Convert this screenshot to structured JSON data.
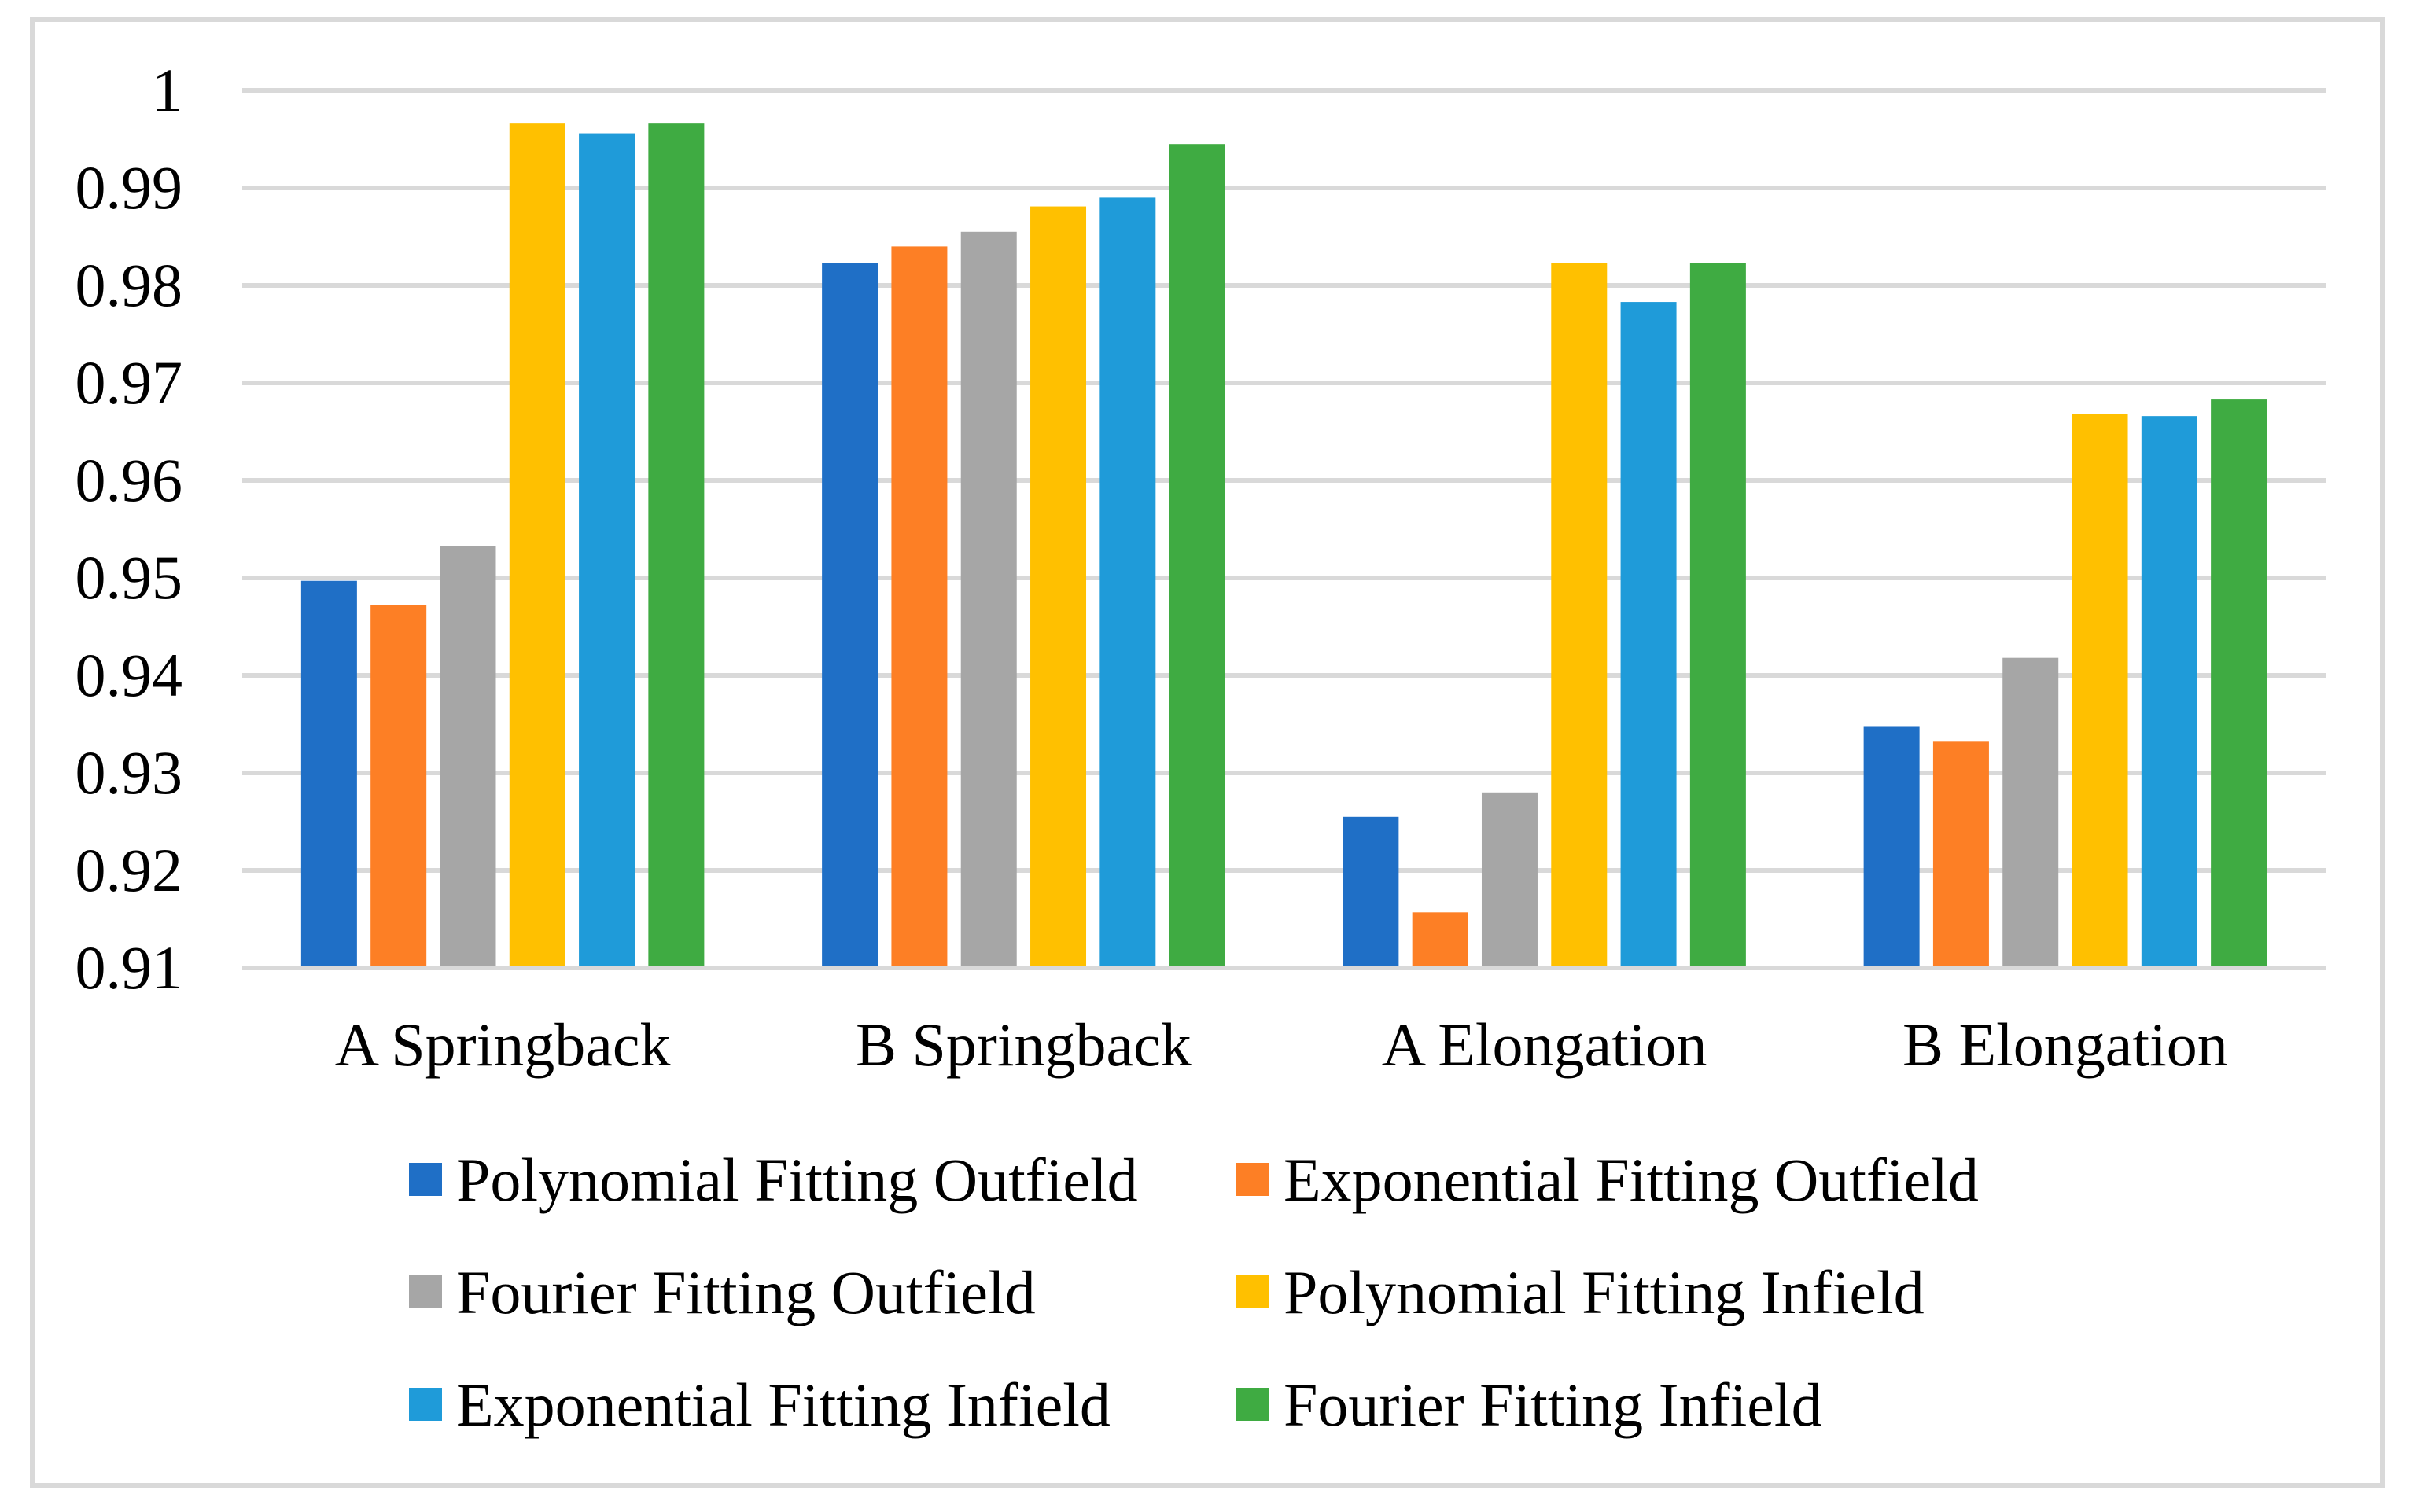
{
  "chart_data": {
    "type": "bar",
    "title": "",
    "xlabel": "",
    "ylabel": "",
    "ylim": [
      0.91,
      1.0
    ],
    "yticks": [
      0.91,
      0.92,
      0.93,
      0.94,
      0.95,
      0.96,
      0.97,
      0.98,
      0.99,
      1.0
    ],
    "ytick_labels": [
      "0.91",
      "0.92",
      "0.93",
      "0.94",
      "0.95",
      "0.96",
      "0.97",
      "0.98",
      "0.99",
      "1"
    ],
    "grid": true,
    "legend_position": "bottom",
    "categories": [
      "A Springback",
      "B Springback",
      "A Elongation",
      "B Elongation"
    ],
    "series": [
      {
        "name": "Polynomial Fitting Outfield",
        "color": "#1f6fc6",
        "values": [
          0.9497,
          0.9823,
          0.9255,
          0.9348
        ]
      },
      {
        "name": "Exponential Fitting Outfield",
        "color": "#fd7f25",
        "values": [
          0.9472,
          0.984,
          0.9157,
          0.9332
        ]
      },
      {
        "name": "Fourier Fitting Outfield",
        "color": "#a6a6a6",
        "values": [
          0.9533,
          0.9855,
          0.928,
          0.9418
        ]
      },
      {
        "name": "Polynomial Fitting Infield",
        "color": "#ffc000",
        "values": [
          0.9966,
          0.9881,
          0.9823,
          0.9668
        ]
      },
      {
        "name": "Exponential Fitting Infield",
        "color": "#1f9bd9",
        "values": [
          0.9956,
          0.989,
          0.9783,
          0.9666
        ]
      },
      {
        "name": "Fourier Fitting Infield",
        "color": "#3fab42",
        "values": [
          0.9966,
          0.9945,
          0.9823,
          0.9683
        ]
      }
    ],
    "colors": {
      "gridline": "#d9d9d9",
      "axis_line": "#d9d9d9",
      "frame": "#d9d9d9",
      "text": "#000000"
    }
  }
}
